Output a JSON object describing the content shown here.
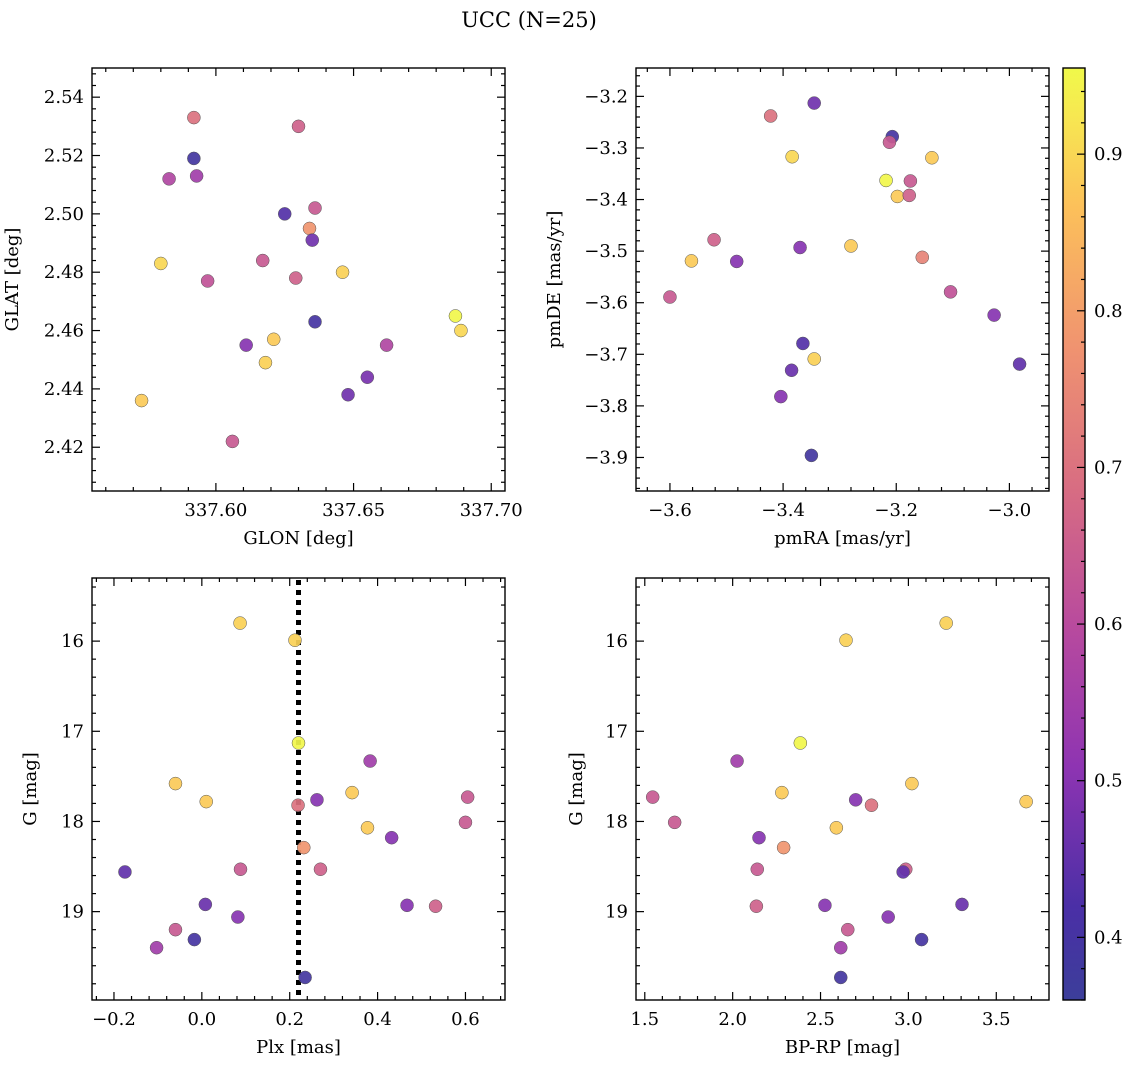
{
  "title": "UCC (N=25)",
  "chart_data": [
    {
      "type": "scatter",
      "xlabel": "GLON [deg]",
      "ylabel": "GLAT [deg]",
      "xlim": [
        337.555,
        337.705
      ],
      "ylim": [
        2.405,
        2.55
      ],
      "xticks": [
        337.6,
        337.65,
        337.7
      ],
      "xtick_labels": [
        "337.60",
        "337.65",
        "337.70"
      ],
      "yticks": [
        2.42,
        2.44,
        2.46,
        2.48,
        2.5,
        2.52,
        2.54
      ],
      "ytick_labels": [
        "2.42",
        "2.44",
        "2.46",
        "2.48",
        "2.50",
        "2.52",
        "2.54"
      ],
      "points": [
        {
          "x": 337.592,
          "y": 2.533,
          "c": 0.7
        },
        {
          "x": 337.63,
          "y": 2.53,
          "c": 0.66
        },
        {
          "x": 337.592,
          "y": 2.519,
          "c": 0.39
        },
        {
          "x": 337.583,
          "y": 2.512,
          "c": 0.58
        },
        {
          "x": 337.593,
          "y": 2.513,
          "c": 0.55
        },
        {
          "x": 337.625,
          "y": 2.5,
          "c": 0.43
        },
        {
          "x": 337.636,
          "y": 2.502,
          "c": 0.64
        },
        {
          "x": 337.634,
          "y": 2.495,
          "c": 0.78
        },
        {
          "x": 337.635,
          "y": 2.491,
          "c": 0.47
        },
        {
          "x": 337.58,
          "y": 2.483,
          "c": 0.9
        },
        {
          "x": 337.617,
          "y": 2.484,
          "c": 0.64
        },
        {
          "x": 337.597,
          "y": 2.477,
          "c": 0.62
        },
        {
          "x": 337.629,
          "y": 2.478,
          "c": 0.66
        },
        {
          "x": 337.646,
          "y": 2.48,
          "c": 0.89
        },
        {
          "x": 337.687,
          "y": 2.465,
          "c": 0.95
        },
        {
          "x": 337.689,
          "y": 2.46,
          "c": 0.9
        },
        {
          "x": 337.636,
          "y": 2.463,
          "c": 0.4
        },
        {
          "x": 337.621,
          "y": 2.457,
          "c": 0.88
        },
        {
          "x": 337.611,
          "y": 2.455,
          "c": 0.5
        },
        {
          "x": 337.662,
          "y": 2.455,
          "c": 0.58
        },
        {
          "x": 337.618,
          "y": 2.449,
          "c": 0.89
        },
        {
          "x": 337.655,
          "y": 2.444,
          "c": 0.48
        },
        {
          "x": 337.648,
          "y": 2.438,
          "c": 0.47
        },
        {
          "x": 337.573,
          "y": 2.436,
          "c": 0.88
        },
        {
          "x": 337.606,
          "y": 2.422,
          "c": 0.64
        }
      ]
    },
    {
      "type": "scatter",
      "xlabel": "pmRA [mas/yr]",
      "ylabel": "pmDE [mas/yr]",
      "xlim": [
        -3.66,
        -2.93
      ],
      "ylim": [
        -3.965,
        -3.145
      ],
      "xticks": [
        -3.6,
        -3.4,
        -3.2,
        -3.0
      ],
      "xtick_labels": [
        "−3.6",
        "−3.4",
        "−3.2",
        "−3.0"
      ],
      "yticks": [
        -3.9,
        -3.8,
        -3.7,
        -3.6,
        -3.5,
        -3.4,
        -3.3,
        -3.2
      ],
      "ytick_labels": [
        "−3.9",
        "−3.8",
        "−3.7",
        "−3.6",
        "−3.5",
        "−3.4",
        "−3.3",
        "−3.2"
      ],
      "points": [
        {
          "x": -3.345,
          "y": -3.213,
          "c": 0.47
        },
        {
          "x": -3.422,
          "y": -3.238,
          "c": 0.7
        },
        {
          "x": -3.207,
          "y": -3.278,
          "c": 0.4
        },
        {
          "x": -3.212,
          "y": -3.289,
          "c": 0.64
        },
        {
          "x": -3.384,
          "y": -3.317,
          "c": 0.9
        },
        {
          "x": -3.137,
          "y": -3.319,
          "c": 0.88
        },
        {
          "x": -3.218,
          "y": -3.363,
          "c": 0.95
        },
        {
          "x": -3.175,
          "y": -3.364,
          "c": 0.64
        },
        {
          "x": -3.198,
          "y": -3.394,
          "c": 0.88
        },
        {
          "x": -3.177,
          "y": -3.392,
          "c": 0.66
        },
        {
          "x": -3.522,
          "y": -3.478,
          "c": 0.66
        },
        {
          "x": -3.28,
          "y": -3.49,
          "c": 0.88
        },
        {
          "x": -3.37,
          "y": -3.493,
          "c": 0.5
        },
        {
          "x": -3.562,
          "y": -3.519,
          "c": 0.88
        },
        {
          "x": -3.482,
          "y": -3.52,
          "c": 0.5
        },
        {
          "x": -3.154,
          "y": -3.512,
          "c": 0.74
        },
        {
          "x": -3.6,
          "y": -3.589,
          "c": 0.64
        },
        {
          "x": -3.104,
          "y": -3.579,
          "c": 0.62
        },
        {
          "x": -3.027,
          "y": -3.624,
          "c": 0.5
        },
        {
          "x": -3.365,
          "y": -3.679,
          "c": 0.43
        },
        {
          "x": -3.345,
          "y": -3.709,
          "c": 0.89
        },
        {
          "x": -2.982,
          "y": -3.719,
          "c": 0.45
        },
        {
          "x": -3.385,
          "y": -3.731,
          "c": 0.46
        },
        {
          "x": -3.404,
          "y": -3.782,
          "c": 0.5
        },
        {
          "x": -3.35,
          "y": -3.896,
          "c": 0.39
        }
      ]
    },
    {
      "type": "scatter",
      "xlabel": "Plx [mas]",
      "ylabel": "G [mag]",
      "xlim": [
        -0.25,
        0.69
      ],
      "ylim": [
        19.98,
        15.3
      ],
      "y_inverted": true,
      "vline_x": 0.22,
      "xticks": [
        -0.2,
        0.0,
        0.2,
        0.4,
        0.6
      ],
      "xtick_labels": [
        "−0.2",
        "0.0",
        "0.2",
        "0.4",
        "0.6"
      ],
      "yticks": [
        16,
        17,
        18,
        19
      ],
      "ytick_labels": [
        "16",
        "17",
        "18",
        "19"
      ],
      "points": [
        {
          "x": 0.087,
          "y": 15.8,
          "c": 0.89
        },
        {
          "x": 0.212,
          "y": 15.99,
          "c": 0.89
        },
        {
          "x": 0.22,
          "y": 17.13,
          "c": 0.95
        },
        {
          "x": 0.383,
          "y": 17.33,
          "c": 0.55
        },
        {
          "x": -0.06,
          "y": 17.58,
          "c": 0.88
        },
        {
          "x": 0.342,
          "y": 17.68,
          "c": 0.88
        },
        {
          "x": 0.605,
          "y": 17.73,
          "c": 0.64
        },
        {
          "x": 0.262,
          "y": 17.76,
          "c": 0.5
        },
        {
          "x": 0.01,
          "y": 17.78,
          "c": 0.88
        },
        {
          "x": 0.219,
          "y": 17.82,
          "c": 0.7
        },
        {
          "x": 0.6,
          "y": 18.01,
          "c": 0.64
        },
        {
          "x": 0.377,
          "y": 18.07,
          "c": 0.88
        },
        {
          "x": 0.432,
          "y": 18.18,
          "c": 0.5
        },
        {
          "x": 0.232,
          "y": 18.29,
          "c": 0.78
        },
        {
          "x": 0.27,
          "y": 18.53,
          "c": 0.66
        },
        {
          "x": 0.088,
          "y": 18.53,
          "c": 0.64
        },
        {
          "x": -0.175,
          "y": 18.56,
          "c": 0.45
        },
        {
          "x": 0.467,
          "y": 18.93,
          "c": 0.5
        },
        {
          "x": 0.532,
          "y": 18.94,
          "c": 0.66
        },
        {
          "x": 0.008,
          "y": 18.92,
          "c": 0.46
        },
        {
          "x": 0.082,
          "y": 19.06,
          "c": 0.5
        },
        {
          "x": -0.06,
          "y": 19.2,
          "c": 0.64
        },
        {
          "x": -0.017,
          "y": 19.31,
          "c": 0.4
        },
        {
          "x": -0.103,
          "y": 19.4,
          "c": 0.55
        },
        {
          "x": 0.235,
          "y": 19.73,
          "c": 0.39
        }
      ]
    },
    {
      "type": "scatter",
      "xlabel": "BP-RP [mag]",
      "ylabel": "G [mag]",
      "xlim": [
        1.45,
        3.8
      ],
      "ylim": [
        19.98,
        15.3
      ],
      "y_inverted": true,
      "xticks": [
        1.5,
        2.0,
        2.5,
        3.0,
        3.5
      ],
      "xtick_labels": [
        "1.5",
        "2.0",
        "2.5",
        "3.0",
        "3.5"
      ],
      "yticks": [
        16,
        17,
        18,
        19
      ],
      "ytick_labels": [
        "16",
        "17",
        "18",
        "19"
      ],
      "points": [
        {
          "x": 3.215,
          "y": 15.8,
          "c": 0.89
        },
        {
          "x": 2.645,
          "y": 15.99,
          "c": 0.89
        },
        {
          "x": 2.385,
          "y": 17.13,
          "c": 0.95
        },
        {
          "x": 2.025,
          "y": 17.33,
          "c": 0.55
        },
        {
          "x": 3.02,
          "y": 17.58,
          "c": 0.88
        },
        {
          "x": 2.28,
          "y": 17.68,
          "c": 0.88
        },
        {
          "x": 1.545,
          "y": 17.73,
          "c": 0.64
        },
        {
          "x": 2.7,
          "y": 17.76,
          "c": 0.5
        },
        {
          "x": 3.67,
          "y": 17.78,
          "c": 0.88
        },
        {
          "x": 2.79,
          "y": 17.82,
          "c": 0.7
        },
        {
          "x": 1.67,
          "y": 18.01,
          "c": 0.64
        },
        {
          "x": 2.59,
          "y": 18.07,
          "c": 0.88
        },
        {
          "x": 2.15,
          "y": 18.18,
          "c": 0.5
        },
        {
          "x": 2.29,
          "y": 18.29,
          "c": 0.78
        },
        {
          "x": 2.985,
          "y": 18.53,
          "c": 0.66
        },
        {
          "x": 2.14,
          "y": 18.53,
          "c": 0.64
        },
        {
          "x": 2.97,
          "y": 18.56,
          "c": 0.45
        },
        {
          "x": 2.525,
          "y": 18.93,
          "c": 0.5
        },
        {
          "x": 2.135,
          "y": 18.94,
          "c": 0.66
        },
        {
          "x": 3.305,
          "y": 18.92,
          "c": 0.46
        },
        {
          "x": 2.885,
          "y": 19.06,
          "c": 0.5
        },
        {
          "x": 2.655,
          "y": 19.2,
          "c": 0.64
        },
        {
          "x": 3.075,
          "y": 19.31,
          "c": 0.4
        },
        {
          "x": 2.615,
          "y": 19.4,
          "c": 0.55
        },
        {
          "x": 2.615,
          "y": 19.73,
          "c": 0.39
        }
      ]
    }
  ],
  "colorbar": {
    "colormap": "plasma",
    "range": [
      0.36,
      0.955
    ],
    "ticks": [
      0.4,
      0.5,
      0.6,
      0.7,
      0.8,
      0.9
    ],
    "tick_labels": [
      "0.4",
      "0.5",
      "0.6",
      "0.7",
      "0.8",
      "0.9"
    ]
  }
}
